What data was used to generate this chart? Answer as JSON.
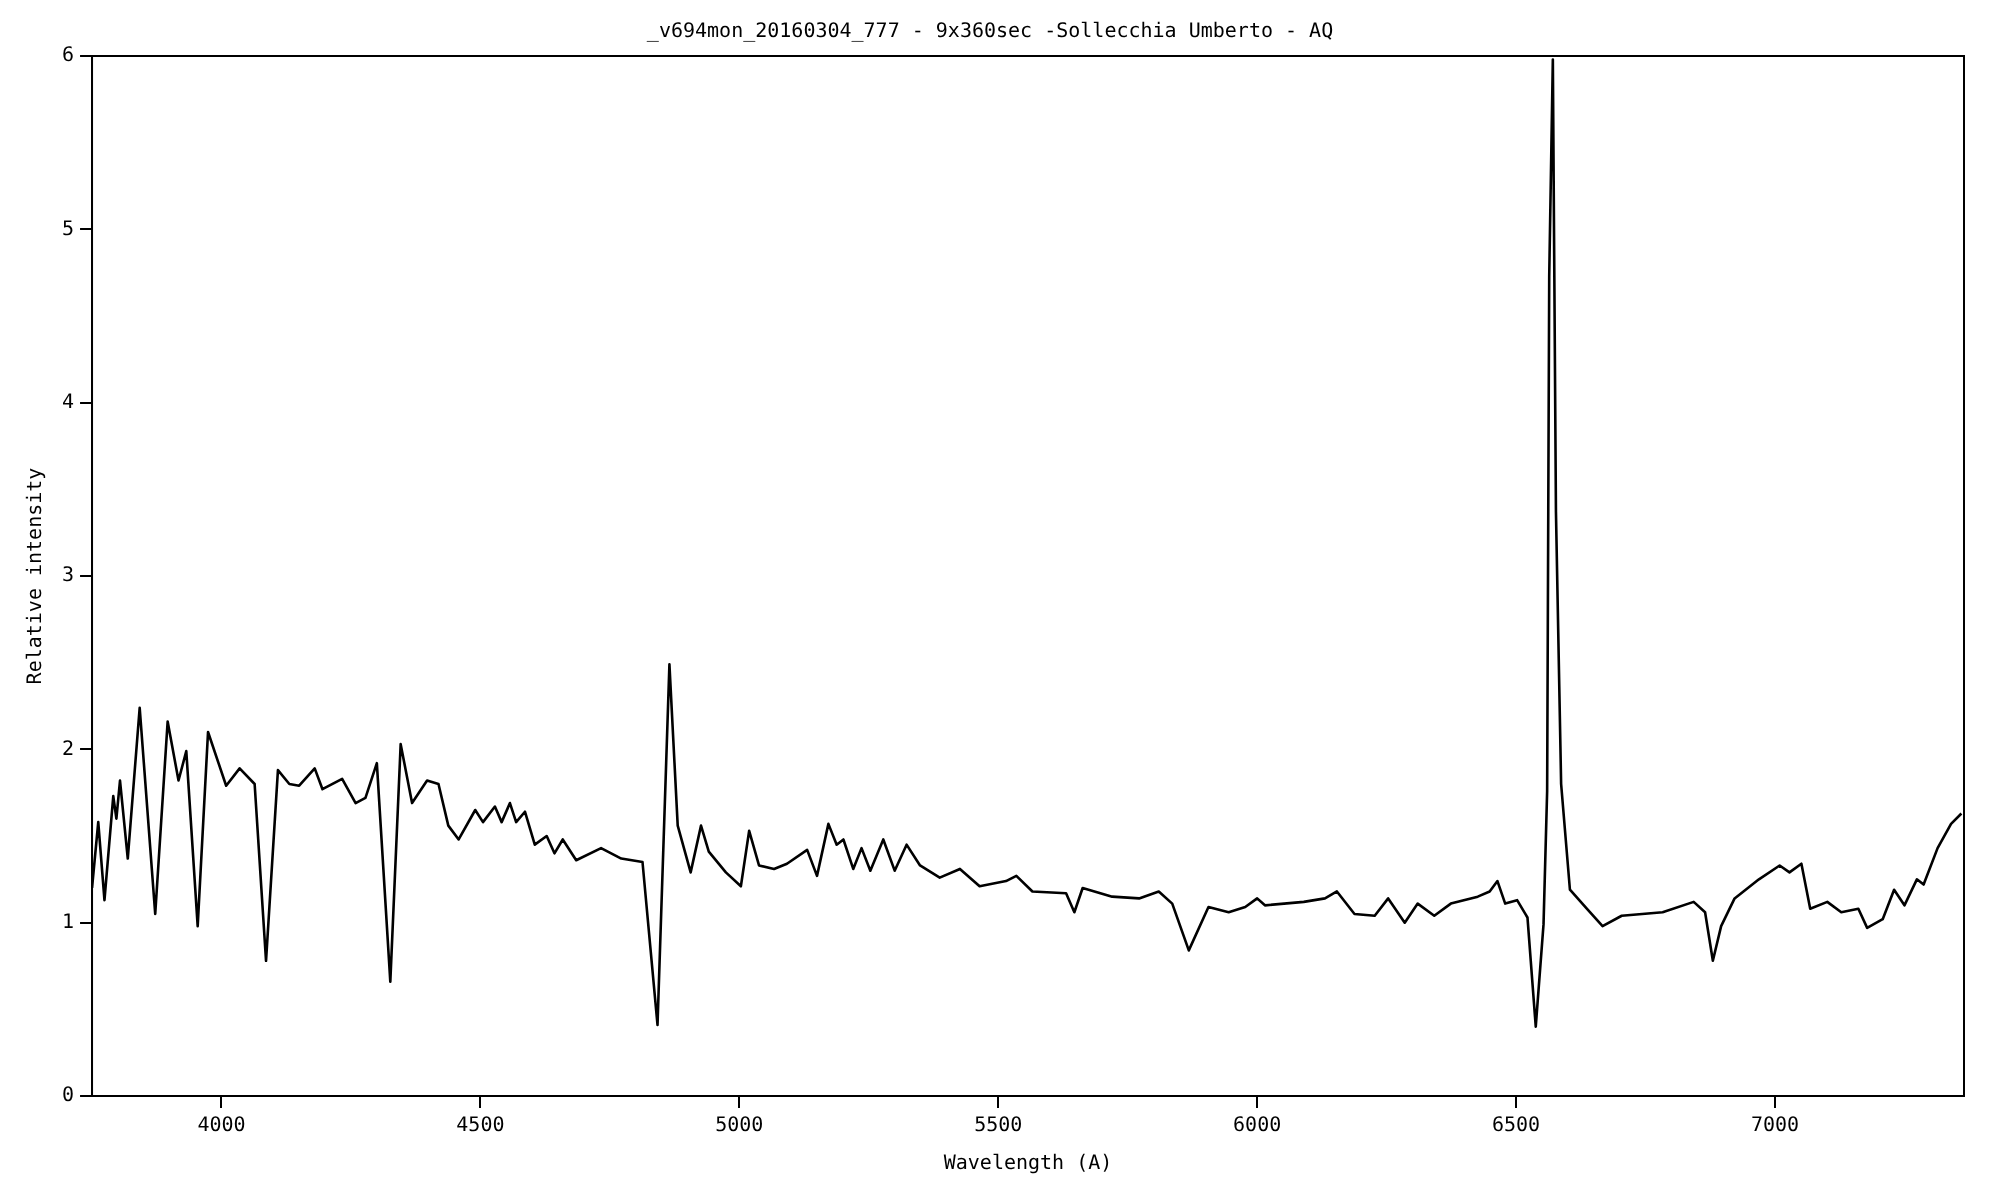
{
  "chart_data": {
    "type": "line",
    "title": "_v694mon_20160304_777 - 9x360sec -Sollecchia Umberto - AQ",
    "xlabel": "Wavelength (A)",
    "ylabel": "Relative intensity",
    "x": [
      3750,
      3762,
      3774,
      3791,
      3797,
      3804,
      3819,
      3842,
      3872,
      3896,
      3917,
      3932,
      3954,
      3974,
      4009,
      4035,
      4064,
      4086,
      4109,
      4131,
      4150,
      4180,
      4195,
      4233,
      4259,
      4278,
      4300,
      4326,
      4346,
      4368,
      4397,
      4419,
      4438,
      4458,
      4490,
      4505,
      4528,
      4541,
      4557,
      4569,
      4586,
      4605,
      4628,
      4643,
      4659,
      4685,
      4733,
      4772,
      4813,
      4842,
      4865,
      4881,
      4906,
      4926,
      4941,
      4974,
      5003,
      5019,
      5038,
      5067,
      5092,
      5131,
      5150,
      5172,
      5188,
      5201,
      5220,
      5236,
      5253,
      5278,
      5300,
      5323,
      5349,
      5387,
      5426,
      5464,
      5515,
      5535,
      5566,
      5631,
      5647,
      5663,
      5720,
      5772,
      5810,
      5836,
      5868,
      5906,
      5945,
      5977,
      6000,
      6015,
      6090,
      6131,
      6154,
      6188,
      6227,
      6253,
      6285,
      6310,
      6342,
      6374,
      6426,
      6449,
      6464,
      6479,
      6502,
      6522,
      6538,
      6553,
      6560,
      6564,
      6571,
      6577,
      6587,
      6604,
      6637,
      6667,
      6704,
      6783,
      6843,
      6865,
      6880,
      6896,
      6922,
      6969,
      7009,
      7028,
      7051,
      7068,
      7101,
      7128,
      7161,
      7178,
      7208,
      7230,
      7250,
      7274,
      7287,
      7314,
      7340,
      7360
    ],
    "series": [
      {
        "color": "#000000",
        "values": [
          1.2,
          1.58,
          1.13,
          1.73,
          1.6,
          1.82,
          1.37,
          2.24,
          1.05,
          2.16,
          1.82,
          1.99,
          0.98,
          2.1,
          1.79,
          1.89,
          1.8,
          0.78,
          1.88,
          1.8,
          1.79,
          1.89,
          1.77,
          1.83,
          1.69,
          1.72,
          1.92,
          0.66,
          2.03,
          1.69,
          1.82,
          1.8,
          1.56,
          1.48,
          1.65,
          1.58,
          1.67,
          1.58,
          1.69,
          1.58,
          1.64,
          1.45,
          1.5,
          1.4,
          1.48,
          1.36,
          1.43,
          1.37,
          1.35,
          0.41,
          2.49,
          1.56,
          1.29,
          1.56,
          1.41,
          1.29,
          1.21,
          1.53,
          1.33,
          1.31,
          1.34,
          1.42,
          1.27,
          1.57,
          1.45,
          1.48,
          1.31,
          1.43,
          1.3,
          1.48,
          1.3,
          1.45,
          1.33,
          1.26,
          1.31,
          1.21,
          1.24,
          1.27,
          1.18,
          1.17,
          1.06,
          1.2,
          1.15,
          1.14,
          1.18,
          1.11,
          0.84,
          1.09,
          1.06,
          1.09,
          1.14,
          1.1,
          1.12,
          1.14,
          1.18,
          1.05,
          1.04,
          1.14,
          1,
          1.11,
          1.04,
          1.11,
          1.15,
          1.18,
          1.24,
          1.11,
          1.13,
          1.03,
          0.4,
          0.99,
          1.76,
          4.73,
          5.98,
          3.37,
          1.8,
          1.19,
          1.08,
          0.98,
          1.04,
          1.06,
          1.12,
          1.06,
          0.78,
          0.98,
          1.14,
          1.25,
          1.33,
          1.29,
          1.34,
          1.08,
          1.12,
          1.06,
          1.08,
          0.97,
          1.02,
          1.19,
          1.1,
          1.25,
          1.22,
          1.43,
          1.57,
          1.63
        ]
      }
    ],
    "xlim": [
      3750,
      7365
    ],
    "xticks": [
      4000,
      4500,
      5000,
      5500,
      6000,
      6500,
      7000
    ],
    "ylim": [
      0,
      6
    ],
    "yticks": [
      0,
      1,
      2,
      3,
      4,
      5,
      6
    ],
    "grid": false,
    "legend": false,
    "marker": "none",
    "line_style": "solid"
  }
}
